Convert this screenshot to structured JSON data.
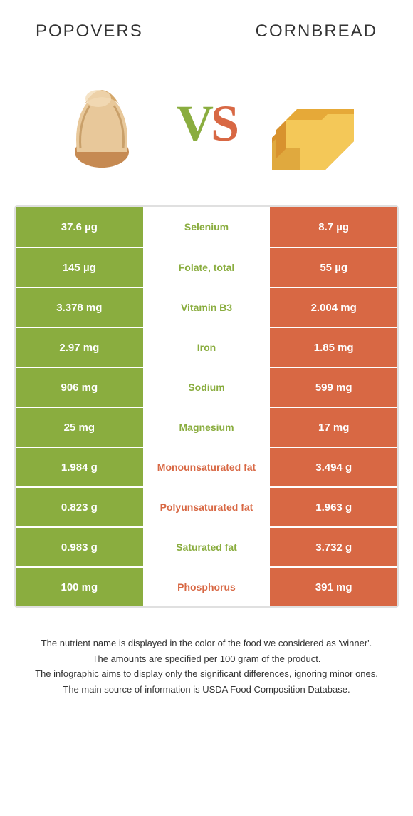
{
  "colors": {
    "green": "#8aad3f",
    "orange": "#d86844",
    "border": "#e0e0e0",
    "text": "#333333",
    "white": "#ffffff"
  },
  "header": {
    "left": "Popovers",
    "right": "Cornbread"
  },
  "vs": {
    "v": "V",
    "s": "S"
  },
  "rows": [
    {
      "left": "37.6 µg",
      "label": "Selenium",
      "right": "8.7 µg",
      "winner": "left"
    },
    {
      "left": "145 µg",
      "label": "Folate, total",
      "right": "55 µg",
      "winner": "left"
    },
    {
      "left": "3.378 mg",
      "label": "Vitamin B3",
      "right": "2.004 mg",
      "winner": "left"
    },
    {
      "left": "2.97 mg",
      "label": "Iron",
      "right": "1.85 mg",
      "winner": "left"
    },
    {
      "left": "906 mg",
      "label": "Sodium",
      "right": "599 mg",
      "winner": "left"
    },
    {
      "left": "25 mg",
      "label": "Magnesium",
      "right": "17 mg",
      "winner": "left"
    },
    {
      "left": "1.984 g",
      "label": "Monounsaturated fat",
      "right": "3.494 g",
      "winner": "right"
    },
    {
      "left": "0.823 g",
      "label": "Polyunsaturated fat",
      "right": "1.963 g",
      "winner": "right"
    },
    {
      "left": "0.983 g",
      "label": "Saturated fat",
      "right": "3.732 g",
      "winner": "left"
    },
    {
      "left": "100 mg",
      "label": "Phosphorus",
      "right": "391 mg",
      "winner": "right"
    }
  ],
  "caption": {
    "l1": "The nutrient name is displayed in the color of the food we considered as 'winner'.",
    "l2": "The amounts are specified per 100 gram of the product.",
    "l3": "The infographic aims to display only the significant differences, ignoring minor ones.",
    "l4": "The main source of information is USDA Food Composition Database."
  }
}
